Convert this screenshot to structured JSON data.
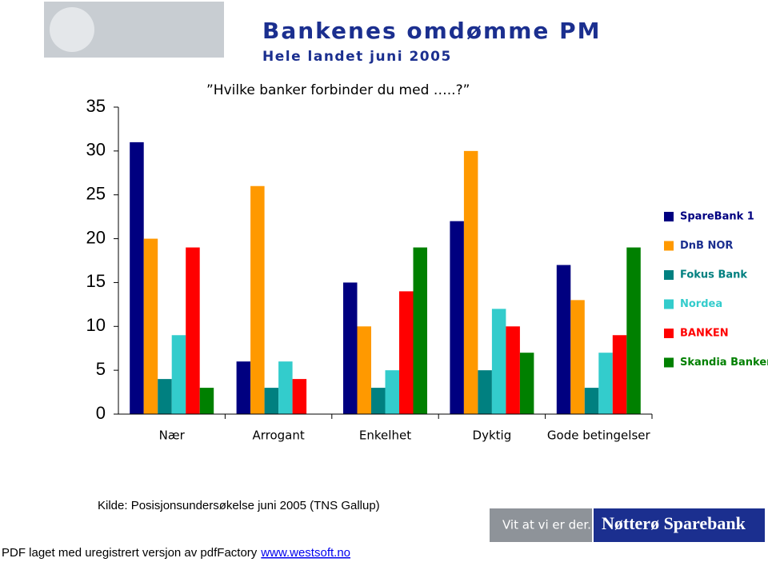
{
  "chart_data": {
    "type": "bar",
    "title": "Bankenes omdømme PM",
    "subtitle": "Hele landet juni 2005",
    "annotation": "”Hvilke banker forbinder du med …..?”",
    "categories": [
      "Nær",
      "Arrogant",
      "Enkelhet",
      "Dyktig",
      "Gode betingelser"
    ],
    "series": [
      {
        "name": "SpareBank 1",
        "color": "#000080",
        "values": [
          31,
          6,
          15,
          22,
          17
        ]
      },
      {
        "name": "DnB NOR",
        "color": "#ff9900",
        "values": [
          20,
          26,
          10,
          30,
          13
        ]
      },
      {
        "name": "Fokus Bank",
        "color": "#008080",
        "values": [
          4,
          3,
          3,
          5,
          3
        ]
      },
      {
        "name": "Nordea",
        "color": "#33cccc",
        "values": [
          9,
          6,
          5,
          12,
          7
        ]
      },
      {
        "name": "BANKEN",
        "color": "#ff0000",
        "values": [
          19,
          4,
          14,
          10,
          9
        ]
      },
      {
        "name": "Skandia Banken",
        "color": "#008000",
        "values": [
          3,
          0,
          19,
          7,
          19
        ]
      }
    ],
    "ylim": [
      0,
      35
    ],
    "yticks": [
      0,
      5,
      10,
      15,
      20,
      25,
      30,
      35
    ],
    "grid": false,
    "legend": "right"
  },
  "footer": {
    "source": "Kilde: Posisjonsundersøkelse juni 2005 (TNS Gallup)",
    "slogan": "Vit at vi er der.",
    "bank": "Nøtterø Sparebank",
    "pdf_note": "PDF laget med uregistrert versjon av pdfFactory",
    "pdf_link": "www.westsoft.no"
  }
}
